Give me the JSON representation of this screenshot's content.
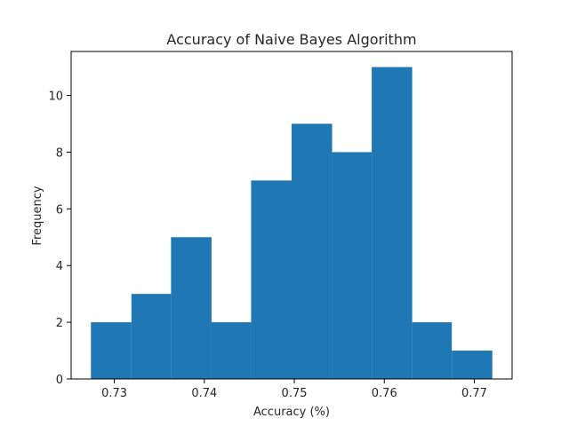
{
  "chart_data": {
    "type": "bar",
    "title": "Accuracy of Naive Bayes Algorithm",
    "xlabel": "Accuracy (%)",
    "ylabel": "Frequency",
    "bin_edges": [
      0.7274,
      0.7319,
      0.7363,
      0.7408,
      0.7452,
      0.7497,
      0.7542,
      0.7586,
      0.7631,
      0.7675,
      0.772
    ],
    "values": [
      2,
      3,
      5,
      2,
      7,
      9,
      8,
      11,
      2,
      1
    ],
    "xlim": [
      0.7252,
      0.7742
    ],
    "ylim": [
      0,
      11.55
    ],
    "xticks": [
      0.73,
      0.74,
      0.75,
      0.76,
      0.77
    ],
    "yticks": [
      0,
      2,
      4,
      6,
      8,
      10
    ],
    "xtick_labels": [
      "0.73",
      "0.74",
      "0.75",
      "0.76",
      "0.77"
    ],
    "ytick_labels": [
      "0",
      "2",
      "4",
      "6",
      "8",
      "10"
    ],
    "bar_color": "#1f77b4",
    "grid": false,
    "legend": "none"
  }
}
